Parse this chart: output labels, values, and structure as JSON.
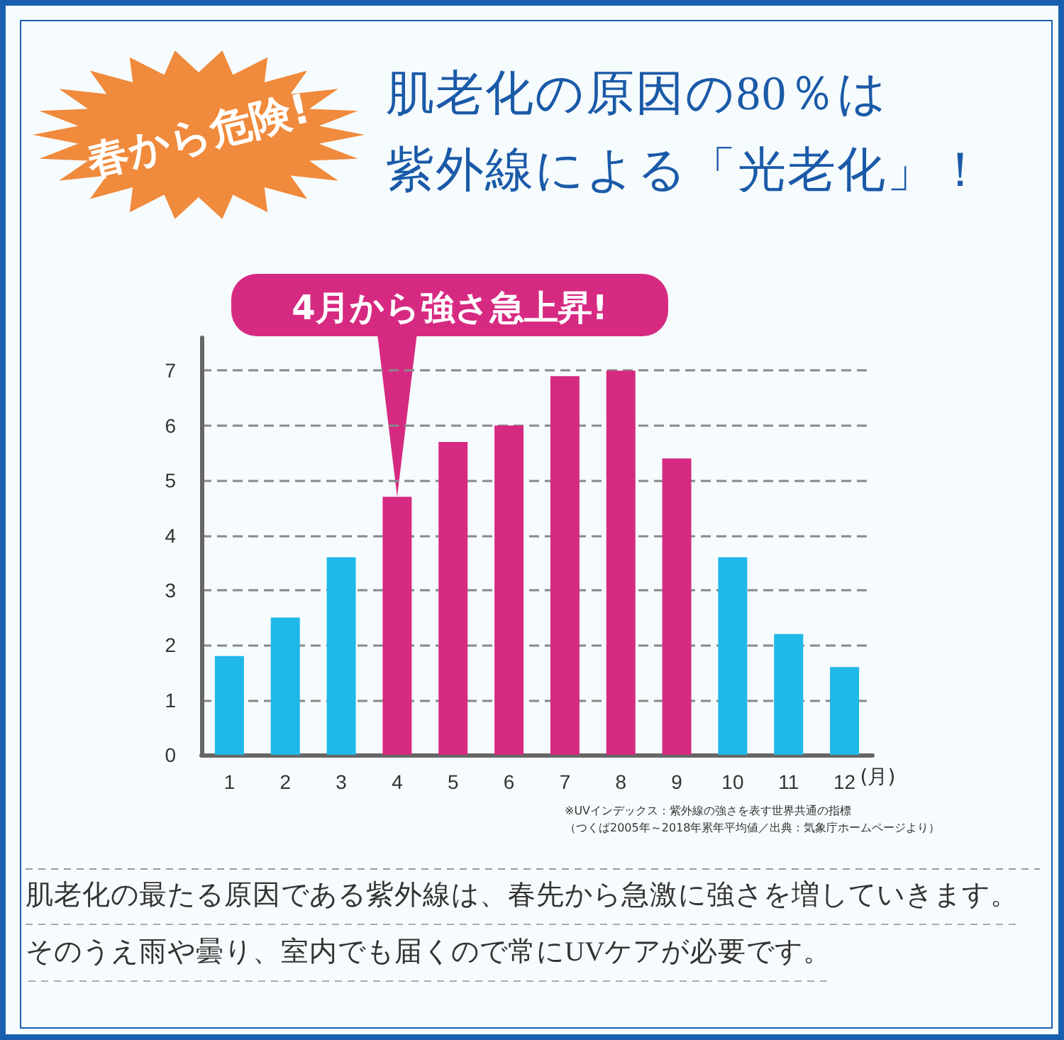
{
  "chart_data": {
    "type": "bar",
    "title": "肌老化の原因の80％は紫外線による「光老化」！",
    "categories": [
      "1",
      "2",
      "3",
      "4",
      "5",
      "6",
      "7",
      "8",
      "9",
      "10",
      "11",
      "12"
    ],
    "values": [
      1.8,
      2.5,
      3.6,
      4.7,
      5.7,
      6.0,
      6.9,
      7.0,
      5.4,
      3.6,
      2.2,
      1.6
    ],
    "colors": [
      "#1fb8e8",
      "#1fb8e8",
      "#1fb8e8",
      "#d62a82",
      "#d62a82",
      "#d62a82",
      "#d62a82",
      "#d62a82",
      "#d62a82",
      "#1fb8e8",
      "#1fb8e8",
      "#1fb8e8"
    ],
    "xlabel": "(月)",
    "ylim": [
      0,
      7.6
    ],
    "yticks": [
      0,
      1,
      2,
      3,
      4,
      5,
      6,
      7
    ],
    "grid": "y",
    "annotations": [
      "春から危険!",
      {
        "text": "4月から強さ急上昇!",
        "x": "4",
        "y": 4.7
      },
      "※UVインデックス：紫外線の強さを表す世界共通の指標",
      "（つくば2005年～2018年累年平均値／出典：気象庁ホームページより）",
      "肌老化の最たる原因である紫外線は、春先から急激に強さを増していきます。そのうえ雨や曇り、室内でも届くので常にUVケアが必要です。"
    ]
  }
}
